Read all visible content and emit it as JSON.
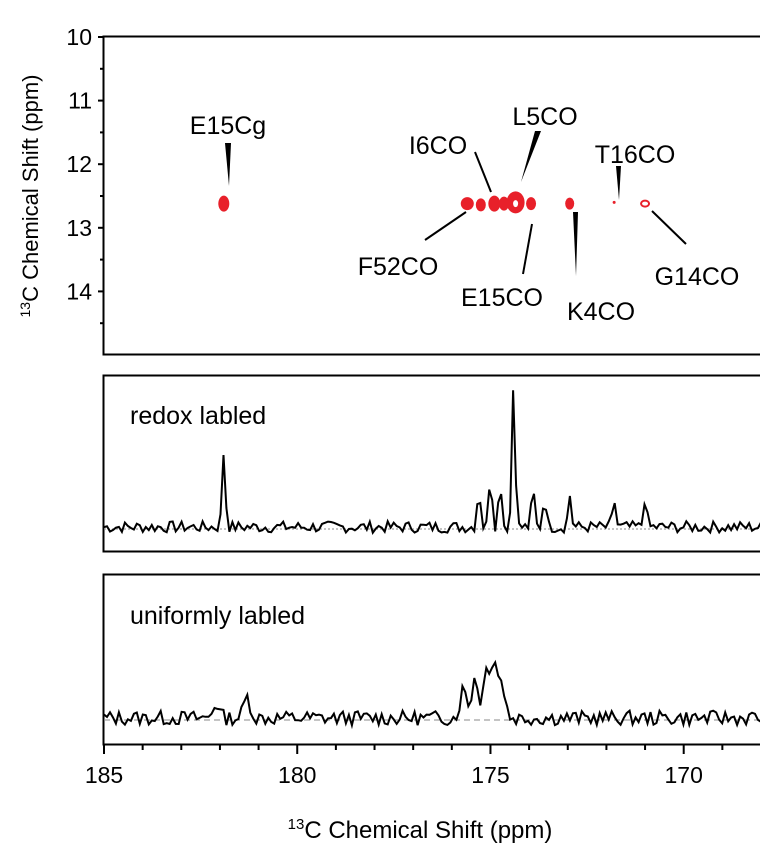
{
  "chart_data": [
    {
      "type": "scatter",
      "panel": "2d-spectrum",
      "ylabel_sup": "13",
      "ylabel_rest": "C Chemical Shift (ppm)",
      "ylim": [
        10,
        15
      ],
      "y_ticks": [
        10,
        11,
        12,
        13,
        14
      ],
      "xlim": [
        185,
        168
      ],
      "peak_color": "#e8202a",
      "peaks": [
        {
          "label": "E15Cg",
          "x": 181.9,
          "y": 12.62
        },
        {
          "label": "I6CO",
          "x": 174.9,
          "y": 12.62
        },
        {
          "label": "L5CO",
          "x": 174.35,
          "y": 12.6
        },
        {
          "label": "T16CO",
          "x": 171.8,
          "y": 12.6
        },
        {
          "label": "F52CO",
          "x": 175.6,
          "y": 12.62
        },
        {
          "label": "E15CO",
          "x": 173.95,
          "y": 12.62
        },
        {
          "label": "K4CO",
          "x": 172.95,
          "y": 12.62
        },
        {
          "label": "G14CO",
          "x": 171.0,
          "y": 12.62
        }
      ]
    },
    {
      "type": "line",
      "panel": "1d-redox",
      "label": "redox labled",
      "xlim": [
        185,
        168
      ],
      "peaks": [
        {
          "x": 181.9,
          "height": 0.52
        },
        {
          "x": 175.3,
          "height": 0.27
        },
        {
          "x": 175.0,
          "height": 0.38
        },
        {
          "x": 174.75,
          "height": 0.32
        },
        {
          "x": 174.4,
          "height": 1.0
        },
        {
          "x": 173.9,
          "height": 0.26
        },
        {
          "x": 173.6,
          "height": 0.22
        },
        {
          "x": 172.95,
          "height": 0.22
        },
        {
          "x": 171.8,
          "height": 0.18
        },
        {
          "x": 171.0,
          "height": 0.2
        }
      ],
      "noise_level": 0.04
    },
    {
      "type": "line",
      "panel": "1d-uniform",
      "label": "uniformly labled",
      "xlim": [
        185,
        168
      ],
      "peaks": [
        {
          "x": 175.7,
          "height": 0.28
        },
        {
          "x": 175.4,
          "height": 0.38
        },
        {
          "x": 175.1,
          "height": 0.45
        },
        {
          "x": 174.9,
          "height": 0.52
        },
        {
          "x": 174.7,
          "height": 0.3
        },
        {
          "x": 181.3,
          "height": 0.2
        },
        {
          "x": 182.1,
          "height": 0.14
        }
      ],
      "noise_level": 0.07,
      "xlabel_sup": "13",
      "xlabel_rest": "C Chemical Shift (ppm)",
      "x_ticks": [
        185,
        180,
        175,
        170
      ]
    }
  ]
}
